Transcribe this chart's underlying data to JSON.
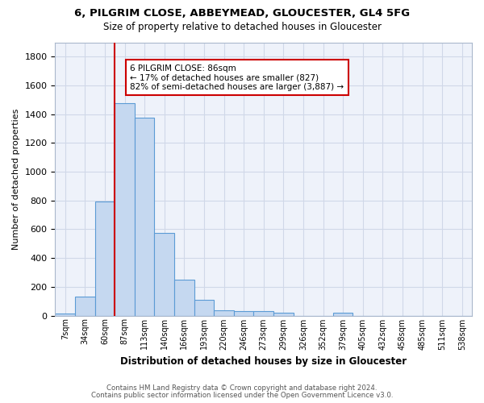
{
  "title1": "6, PILGRIM CLOSE, ABBEYMEAD, GLOUCESTER, GL4 5FG",
  "title2": "Size of property relative to detached houses in Gloucester",
  "xlabel": "Distribution of detached houses by size in Gloucester",
  "ylabel": "Number of detached properties",
  "categories": [
    "7sqm",
    "34sqm",
    "60sqm",
    "87sqm",
    "113sqm",
    "140sqm",
    "166sqm",
    "193sqm",
    "220sqm",
    "246sqm",
    "273sqm",
    "299sqm",
    "326sqm",
    "352sqm",
    "379sqm",
    "405sqm",
    "432sqm",
    "458sqm",
    "485sqm",
    "511sqm",
    "538sqm"
  ],
  "values": [
    15,
    130,
    795,
    1475,
    1375,
    575,
    250,
    110,
    35,
    30,
    30,
    20,
    0,
    0,
    20,
    0,
    0,
    0,
    0,
    0,
    0
  ],
  "bar_color": "#c5d8f0",
  "bar_edge_color": "#5b9bd5",
  "grid_color": "#d0d8e8",
  "bg_color": "#eef2fa",
  "vline_color": "#cc0000",
  "annotation_text": "6 PILGRIM CLOSE: 86sqm\n← 17% of detached houses are smaller (827)\n82% of semi-detached houses are larger (3,887) →",
  "annotation_box_color": "#cc0000",
  "footer1": "Contains HM Land Registry data © Crown copyright and database right 2024.",
  "footer2": "Contains public sector information licensed under the Open Government Licence v3.0.",
  "ylim": [
    0,
    1900
  ],
  "yticks": [
    0,
    200,
    400,
    600,
    800,
    1000,
    1200,
    1400,
    1600,
    1800
  ],
  "vline_pos": 2.5
}
